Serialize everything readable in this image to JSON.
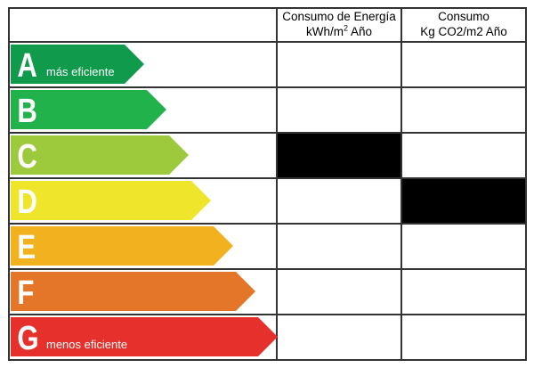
{
  "header": {
    "energy_line1": "Consumo de Energía",
    "energy_line2_pre": "kWh/m",
    "energy_line2_sup": "2",
    "energy_line2_post": " Año",
    "co2_line1": "Consumo",
    "co2_line2": "Kg CO2/m2 Año"
  },
  "ratings": [
    {
      "letter": "A",
      "caption": "más eficiente",
      "color": "#109a4b"
    },
    {
      "letter": "B",
      "caption": "",
      "color": "#21b24b"
    },
    {
      "letter": "C",
      "caption": "",
      "color": "#9cca3c"
    },
    {
      "letter": "D",
      "caption": "",
      "color": "#efe52a"
    },
    {
      "letter": "E",
      "caption": "",
      "color": "#f2b21f"
    },
    {
      "letter": "F",
      "caption": "",
      "color": "#e4762a"
    },
    {
      "letter": "G",
      "caption": "menos eficiente",
      "color": "#e6302c"
    }
  ],
  "selected": {
    "energy_rating": "C",
    "co2_rating": "D",
    "fill_color": "#000000"
  }
}
